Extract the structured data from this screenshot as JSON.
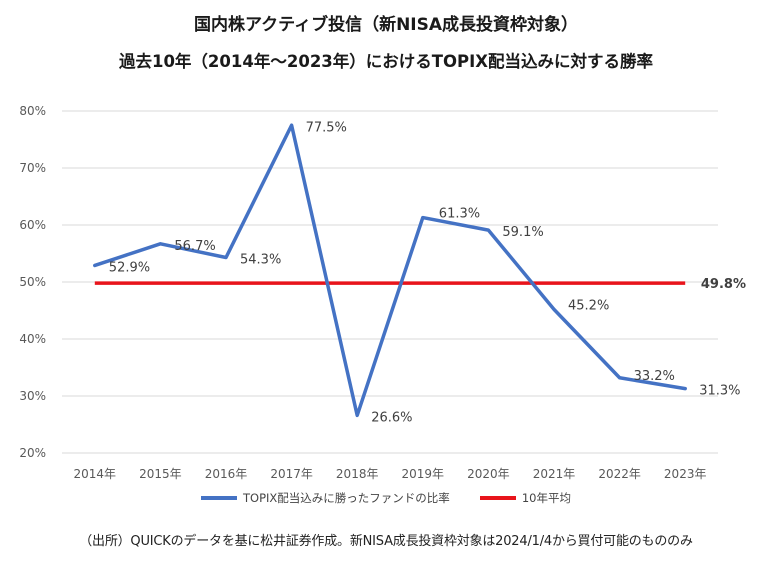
{
  "chart_data": {
    "type": "line",
    "title": "国内株アクティブ投信（新NISA成長投資枠対象）",
    "subtitle": "過去10年（2014年～2023年）におけるTOPIX配当込みに対する勝率",
    "categories": [
      "2014年",
      "2015年",
      "2016年",
      "2017年",
      "2018年",
      "2019年",
      "2020年",
      "2021年",
      "2022年",
      "2023年"
    ],
    "series": [
      {
        "name": "TOPIX配当込みに勝ったファンドの比率",
        "values": [
          52.9,
          56.7,
          54.3,
          77.5,
          26.6,
          61.3,
          59.1,
          45.2,
          33.2,
          31.3
        ],
        "labels": [
          "52.9%",
          "56.7%",
          "54.3%",
          "77.5%",
          "26.6%",
          "61.3%",
          "59.1%",
          "45.2%",
          "33.2%",
          "31.3%"
        ],
        "color": "#4472C4"
      },
      {
        "name": "10年平均",
        "values": [
          49.8,
          49.8,
          49.8,
          49.8,
          49.8,
          49.8,
          49.8,
          49.8,
          49.8,
          49.8
        ],
        "label": "49.8%",
        "color": "#E8141B"
      }
    ],
    "ylim": [
      20,
      80
    ],
    "yticks": [
      "20%",
      "30%",
      "40%",
      "50%",
      "60%",
      "70%",
      "80%"
    ],
    "ytick_values": [
      20,
      30,
      40,
      50,
      60,
      70,
      80
    ],
    "grid": true,
    "legend_position": "bottom"
  },
  "source_note": "（出所）QUICKのデータを基に松井証券作成。新NISA成長投資枠対象は2024/1/4から買付可能のもののみ"
}
